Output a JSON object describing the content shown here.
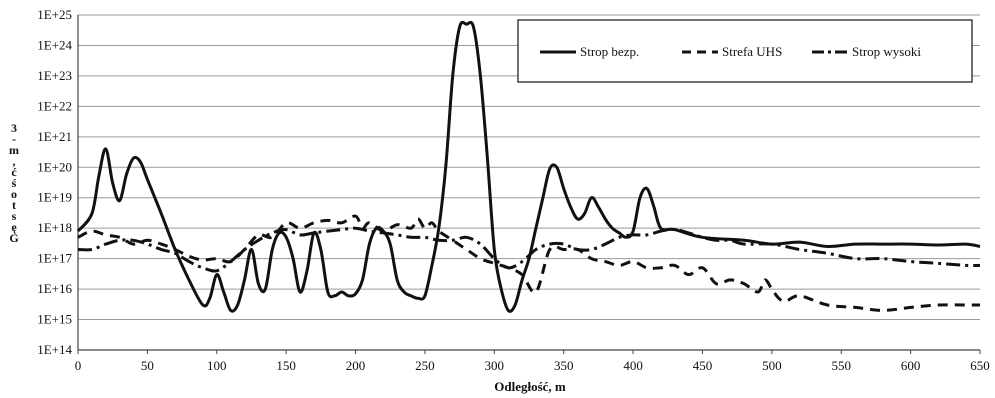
{
  "chart_data": {
    "type": "line",
    "title": "",
    "xlabel": "Odległość, m",
    "ylabel": "Gęstość, m-3",
    "xlim": [
      0,
      650
    ],
    "ylim_log10": [
      14,
      25
    ],
    "y_scale": "log",
    "grid": "horizontal",
    "legend_position": "top-right",
    "x_ticks": [
      0,
      50,
      100,
      150,
      200,
      250,
      300,
      350,
      400,
      450,
      500,
      550,
      600,
      650
    ],
    "y_ticks": [
      "1E+14",
      "1E+15",
      "1E+16",
      "1E+17",
      "1E+18",
      "1E+19",
      "1E+20",
      "1E+21",
      "1E+22",
      "1E+23",
      "1E+24",
      "1E+25"
    ],
    "series": [
      {
        "name": "Strop bezp.",
        "style": "solid",
        "x": [
          0,
          10,
          15,
          20,
          25,
          30,
          35,
          40,
          45,
          50,
          60,
          70,
          80,
          90,
          95,
          100,
          105,
          110,
          115,
          120,
          125,
          130,
          135,
          140,
          145,
          150,
          155,
          160,
          165,
          170,
          175,
          180,
          185,
          190,
          195,
          200,
          205,
          210,
          215,
          220,
          225,
          230,
          235,
          240,
          245,
          250,
          255,
          260,
          265,
          270,
          275,
          280,
          285,
          290,
          295,
          300,
          305,
          310,
          315,
          320,
          325,
          330,
          335,
          340,
          345,
          350,
          355,
          360,
          365,
          370,
          375,
          380,
          385,
          390,
          395,
          400,
          405,
          410,
          415,
          420,
          430,
          450,
          480,
          500,
          520,
          540,
          560,
          580,
          600,
          620,
          640,
          650
        ],
        "y": [
          "8e17",
          "3e18",
          "5e19",
          "4e20",
          "3e19",
          "8e18",
          "6e19",
          "2e20",
          "1.5e20",
          "4e19",
          "3e18",
          "2e17",
          "2e16",
          "3e15",
          "5e15",
          "3e16",
          "8e15",
          "2e15",
          "3e15",
          "2e16",
          "2e17",
          "1.5e16",
          "1e16",
          "2e17",
          "7e17",
          "5e17",
          "1e17",
          "8e15",
          "4e16",
          "7e17",
          "2e17",
          "8e15",
          "6e15",
          "8e15",
          "6e15",
          "7e15",
          "2e16",
          "3e17",
          "1e18",
          "8e17",
          "3e17",
          "2e16",
          "8e15",
          "6e15",
          "5e15",
          "6e15",
          "6e16",
          "1e18",
          "1e20",
          "1e23",
          "4e24",
          "5e24",
          "4e24",
          "1e23",
          "2e20",
          "2e17",
          "1e16",
          "2e15",
          "3e15",
          "2e16",
          "1e17",
          "1e18",
          "1e19",
          "9e19",
          "1e20",
          "2e19",
          "5e18",
          "2e18",
          "3e18",
          "1e19",
          "5e18",
          "2e18",
          "1e18",
          "7e17",
          "5e17",
          "8e17",
          "1e19",
          "2e19",
          "5e18",
          "1e18",
          "9e17",
          "5e17",
          "4e17",
          "3e17",
          "3.5e17",
          "2.5e17",
          "3e17",
          "3e17",
          "3e17",
          "2.8e17",
          "3e17",
          "2.5e17"
        ]
      },
      {
        "name": "Strefa UHS",
        "style": "dashed",
        "x": [
          0,
          10,
          20,
          30,
          40,
          50,
          60,
          70,
          80,
          90,
          100,
          110,
          120,
          130,
          140,
          150,
          160,
          170,
          180,
          190,
          200,
          205,
          210,
          220,
          230,
          240,
          245,
          250,
          255,
          260,
          270,
          280,
          290,
          300,
          310,
          320,
          330,
          340,
          350,
          360,
          370,
          380,
          390,
          400,
          410,
          420,
          430,
          440,
          450,
          460,
          470,
          480,
          490,
          495,
          500,
          505,
          510,
          520,
          540,
          560,
          580,
          600,
          620,
          640,
          650
        ],
        "y": [
          "5e17",
          "8e17",
          "6e17",
          "5e17",
          "3e17",
          "4e17",
          "3e17",
          "2e17",
          "1.2e17",
          "9e16",
          "1e17",
          "8e16",
          "2e17",
          "6e17",
          "5e17",
          "1.5e18",
          "1e18",
          "1.5e18",
          "1.8e18",
          "1.5e18",
          "2.5e18",
          "1e18",
          "1.5e18",
          "8e17",
          "1.3e18",
          "1e18",
          "2e18",
          "1e18",
          "1.5e18",
          "8e17",
          "4e17",
          "2e17",
          "1e17",
          "7e16",
          "5e16",
          "3e16",
          "8e15",
          "2e17",
          "2e17",
          "2e17",
          "1e17",
          "8e16",
          "6e16",
          "8e16",
          "5e16",
          "5e16",
          "6e16",
          "3e16",
          "5e16",
          "1.5e16",
          "2e16",
          "1.5e16",
          "8e15",
          "2e16",
          "1e16",
          "5e15",
          "4e15",
          "6e15",
          "3e15",
          "2.5e15",
          "2e15",
          "2.5e15",
          "3e15",
          "3e15",
          "3e15"
        ]
      },
      {
        "name": "Strop wysoki",
        "style": "dash-dot",
        "x": [
          0,
          10,
          20,
          30,
          40,
          50,
          60,
          70,
          80,
          90,
          100,
          110,
          120,
          130,
          140,
          150,
          160,
          170,
          180,
          190,
          200,
          210,
          220,
          230,
          240,
          250,
          260,
          270,
          280,
          290,
          300,
          310,
          320,
          330,
          340,
          350,
          360,
          370,
          380,
          390,
          400,
          410,
          420,
          430,
          440,
          450,
          460,
          470,
          480,
          500,
          520,
          540,
          560,
          580,
          600,
          620,
          640,
          650
        ],
        "y": [
          "2e17",
          "2e17",
          "3e17",
          "4e17",
          "4e17",
          "3e17",
          "2e17",
          "1.5e17",
          "8e16",
          "5e16",
          "4e16",
          "8e16",
          "2e17",
          "4e17",
          "7e17",
          "9e17",
          "6e17",
          "7e17",
          "8e17",
          "9e17",
          "1e18",
          "8e17",
          "7e17",
          "6e17",
          "5e17",
          "5e17",
          "4e17",
          "4e17",
          "5e17",
          "3e17",
          "1e17",
          "5e16",
          "8e16",
          "2e17",
          "3e17",
          "3e17",
          "2e17",
          "2e17",
          "3e17",
          "5e17",
          "6e17",
          "6e17",
          "8e17",
          "9e17",
          "7e17",
          "5e17",
          "4e17",
          "4e17",
          "3e17",
          "3e17",
          "2e17",
          "1.5e17",
          "1e17",
          "1e17",
          "8e16",
          "7e16",
          "6e16",
          "6e16"
        ]
      }
    ]
  },
  "legend": {
    "items": [
      "Strop bezp.",
      "Strefa UHS",
      "Strop wysoki"
    ]
  },
  "colors": {
    "line": "#111111",
    "grid": "#9a9a9a",
    "axis": "#444444"
  }
}
